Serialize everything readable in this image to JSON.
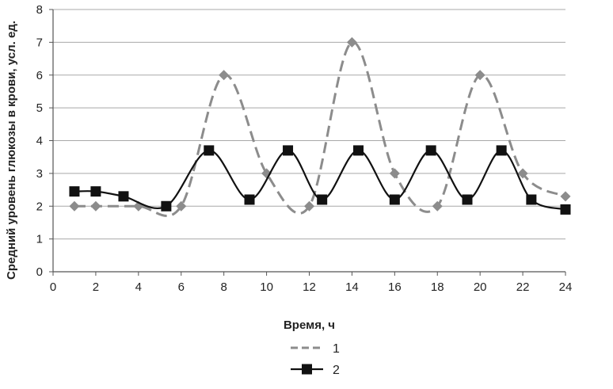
{
  "chart_data": {
    "type": "line",
    "title": "",
    "xlabel": "Время, ч",
    "ylabel": "Средний уровень глюкозы в крови, усл. ед.",
    "xlim": [
      0,
      24
    ],
    "ylim": [
      0,
      8
    ],
    "xticks": [
      0,
      2,
      4,
      6,
      8,
      10,
      12,
      14,
      16,
      18,
      20,
      22,
      24
    ],
    "yticks": [
      0,
      1,
      2,
      3,
      4,
      5,
      6,
      7,
      8
    ],
    "grid": "horizontal",
    "legend_position": "bottom",
    "series": [
      {
        "name": "1",
        "style": "dashed",
        "marker": "diamond",
        "color": "#8c8c8c",
        "x": [
          1,
          2,
          4,
          6,
          8,
          10,
          12,
          14,
          16,
          18,
          20,
          22,
          24
        ],
        "y": [
          2,
          2,
          2,
          2,
          6,
          3,
          2,
          7,
          3,
          2,
          6,
          3,
          2.3
        ]
      },
      {
        "name": "2",
        "style": "solid",
        "marker": "square",
        "color": "#111111",
        "x": [
          1,
          2,
          3.3,
          5.3,
          7.3,
          9.2,
          11,
          12.6,
          14.3,
          16,
          17.7,
          19.4,
          21,
          22.4,
          24
        ],
        "y": [
          2.45,
          2.45,
          2.3,
          2.0,
          3.7,
          2.2,
          3.7,
          2.2,
          3.7,
          2.2,
          3.7,
          2.2,
          3.7,
          2.2,
          1.9
        ]
      }
    ]
  }
}
